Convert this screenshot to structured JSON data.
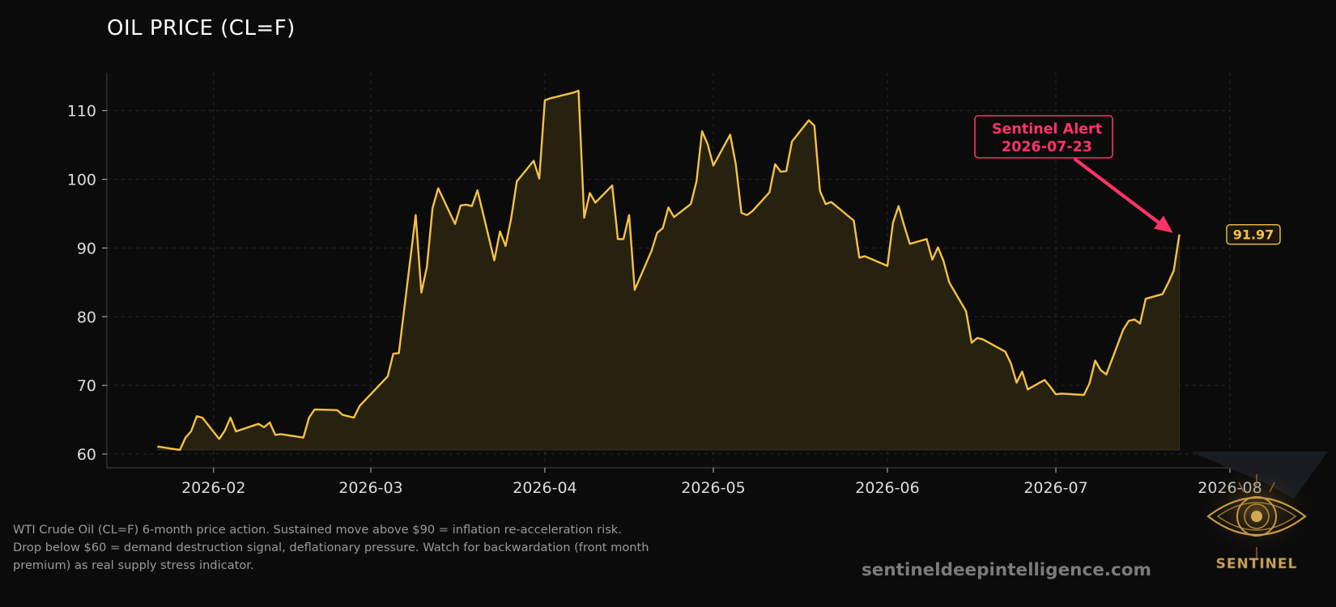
{
  "title": "OIL PRICE (CL=F)",
  "caption": "WTI Crude Oil (CL=F) 6-month price action. Sustained move above $90 = inflation re-acceleration risk.\nDrop below $60 = demand destruction signal, deflationary pressure. Watch for backwardation (front month\npremium) as real supply stress indicator.",
  "watermark": "sentineldeepintelligence.com",
  "logo_text": "SENTINEL",
  "colors": {
    "background": "#0b0b0b",
    "line": "#f5c242",
    "fill": "#27210f",
    "alert": "#ff3366",
    "grid": "#2a2a2a",
    "tick_text": "#dddddd"
  },
  "chart_data": {
    "type": "area",
    "title": "OIL PRICE (CL=F)",
    "xlabel": "",
    "ylabel": "",
    "grid": true,
    "xlim": [
      "2026-01-13",
      "2026-08-01"
    ],
    "ylim": [
      58,
      115.5
    ],
    "y_ticks": [
      60,
      70,
      80,
      90,
      100,
      110
    ],
    "x_ticks": [
      {
        "date": "2026-02-01",
        "label": "2026-02"
      },
      {
        "date": "2026-03-01",
        "label": "2026-03"
      },
      {
        "date": "2026-04-01",
        "label": "2026-04"
      },
      {
        "date": "2026-05-01",
        "label": "2026-05"
      },
      {
        "date": "2026-06-01",
        "label": "2026-06"
      },
      {
        "date": "2026-07-01",
        "label": "2026-07"
      },
      {
        "date": "2026-08-01",
        "label": "2026-08"
      }
    ],
    "series": [
      {
        "dates": [
          "2026-01-22",
          "2026-01-26",
          "2026-01-27",
          "2026-01-28",
          "2026-01-29",
          "2026-01-30",
          "2026-02-02",
          "2026-02-03",
          "2026-02-04",
          "2026-02-05",
          "2026-02-09",
          "2026-02-10",
          "2026-02-11",
          "2026-02-12",
          "2026-02-13",
          "2026-02-17",
          "2026-02-18",
          "2026-02-19",
          "2026-02-23",
          "2026-02-24",
          "2026-02-26",
          "2026-02-27",
          "2026-03-04",
          "2026-03-05",
          "2026-03-06",
          "2026-03-09",
          "2026-03-10",
          "2026-03-11",
          "2026-03-12",
          "2026-03-13",
          "2026-03-16",
          "2026-03-17",
          "2026-03-18",
          "2026-03-19",
          "2026-03-20",
          "2026-03-23",
          "2026-03-24",
          "2026-03-25",
          "2026-03-26",
          "2026-03-27",
          "2026-03-30",
          "2026-03-31",
          "2026-04-01",
          "2026-04-02",
          "2026-04-06",
          "2026-04-07",
          "2026-04-08",
          "2026-04-09",
          "2026-04-10",
          "2026-04-13",
          "2026-04-14",
          "2026-04-15",
          "2026-04-16",
          "2026-04-17",
          "2026-04-20",
          "2026-04-21",
          "2026-04-22",
          "2026-04-23",
          "2026-04-24",
          "2026-04-27",
          "2026-04-28",
          "2026-04-29",
          "2026-04-30",
          "2026-05-01",
          "2026-05-04",
          "2026-05-05",
          "2026-05-06",
          "2026-05-07",
          "2026-05-08",
          "2026-05-11",
          "2026-05-12",
          "2026-05-13",
          "2026-05-14",
          "2026-05-15",
          "2026-05-18",
          "2026-05-19",
          "2026-05-20",
          "2026-05-21",
          "2026-05-22",
          "2026-05-26",
          "2026-05-27",
          "2026-05-28",
          "2026-06-01",
          "2026-06-02",
          "2026-06-03",
          "2026-06-04",
          "2026-06-05",
          "2026-06-08",
          "2026-06-09",
          "2026-06-10",
          "2026-06-11",
          "2026-06-12",
          "2026-06-15",
          "2026-06-16",
          "2026-06-17",
          "2026-06-18",
          "2026-06-22",
          "2026-06-23",
          "2026-06-24",
          "2026-06-25",
          "2026-06-26",
          "2026-06-29",
          "2026-06-30",
          "2026-07-01",
          "2026-07-02",
          "2026-07-06",
          "2026-07-07",
          "2026-07-08",
          "2026-07-09",
          "2026-07-10",
          "2026-07-13",
          "2026-07-14",
          "2026-07-15",
          "2026-07-16",
          "2026-07-17",
          "2026-07-20",
          "2026-07-21",
          "2026-07-22",
          "2026-07-23"
        ],
        "values": [
          61.1,
          60.6,
          62.4,
          63.3,
          65.5,
          65.3,
          62.2,
          63.4,
          65.3,
          63.3,
          64.4,
          63.9,
          64.6,
          62.8,
          62.9,
          62.4,
          65.3,
          66.5,
          66.4,
          65.7,
          65.3,
          67.0,
          71.3,
          74.6,
          74.7,
          94.8,
          83.5,
          87.3,
          95.8,
          98.7,
          93.5,
          96.2,
          96.3,
          96.1,
          98.4,
          88.2,
          92.4,
          90.3,
          94.3,
          99.7,
          102.7,
          100.1,
          111.5,
          111.8,
          112.6,
          112.9,
          94.4,
          98.0,
          96.6,
          99.1,
          91.3,
          91.3,
          94.8,
          83.9,
          89.6,
          92.2,
          92.9,
          95.9,
          94.5,
          96.4,
          99.7,
          107.0,
          105.1,
          102.0,
          106.5,
          102.2,
          95.1,
          94.8,
          95.4,
          98.1,
          102.2,
          101.1,
          101.2,
          105.5,
          108.6,
          107.8,
          98.3,
          96.4,
          96.7,
          94.0,
          88.6,
          88.8,
          87.4,
          93.7,
          96.1,
          93.2,
          90.6,
          91.3,
          88.3,
          90.1,
          88.1,
          85.0,
          80.8,
          76.2,
          76.9,
          76.7,
          74.9,
          73.2,
          70.4,
          72.0,
          69.4,
          70.8,
          69.8,
          68.7,
          68.8,
          68.6,
          70.3,
          73.6,
          72.2,
          71.6,
          78.1,
          79.4,
          79.6,
          79.0,
          82.6,
          83.3,
          84.9,
          86.7,
          91.97
        ]
      }
    ],
    "last_value_label": "91.97",
    "annotation": {
      "lines": [
        "Sentinel Alert",
        "2026-07-23"
      ],
      "target_date": "2026-07-23",
      "target_value": 91.97
    }
  }
}
